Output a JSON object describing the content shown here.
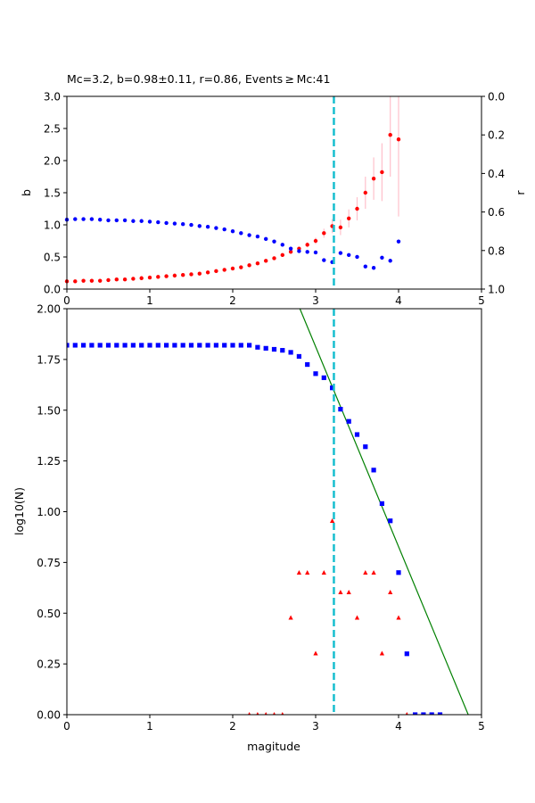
{
  "chart_data": [
    {
      "type": "scatter",
      "title": "Mc=3.2, b=0.98±0.11, r=0.86, Events ≥ Mc:41",
      "xlabel": "",
      "ylabel": "b",
      "y2label": "r",
      "xlim": [
        0,
        5
      ],
      "ylim": [
        0,
        3.0
      ],
      "y2lim": [
        1.0,
        0.0
      ],
      "xticks": [
        "0",
        "1",
        "2",
        "3",
        "4",
        "5"
      ],
      "yticks": [
        "0.0",
        "0.5",
        "1.0",
        "1.5",
        "2.0",
        "2.5",
        "3.0"
      ],
      "y2ticks": [
        "0.0",
        "0.2",
        "0.4",
        "0.6",
        "0.8",
        "1.0"
      ],
      "mc_line": 3.22,
      "colors": {
        "b": "#ff0000",
        "r": "#0000ff",
        "err": "#ffc0cb",
        "mc": "#17becf"
      },
      "series": [
        {
          "name": "b",
          "x": [
            0.0,
            0.1,
            0.2,
            0.3,
            0.4,
            0.5,
            0.6,
            0.7,
            0.8,
            0.9,
            1.0,
            1.1,
            1.2,
            1.3,
            1.4,
            1.5,
            1.6,
            1.7,
            1.8,
            1.9,
            2.0,
            2.1,
            2.2,
            2.3,
            2.4,
            2.5,
            2.6,
            2.7,
            2.8,
            2.9,
            3.0,
            3.1,
            3.2,
            3.3,
            3.4,
            3.5,
            3.6,
            3.7,
            3.8,
            3.9,
            4.0
          ],
          "y": [
            0.12,
            0.12,
            0.13,
            0.13,
            0.13,
            0.14,
            0.15,
            0.15,
            0.16,
            0.17,
            0.18,
            0.19,
            0.2,
            0.21,
            0.22,
            0.23,
            0.24,
            0.26,
            0.28,
            0.3,
            0.32,
            0.34,
            0.37,
            0.4,
            0.44,
            0.48,
            0.53,
            0.58,
            0.63,
            0.69,
            0.75,
            0.87,
            0.98,
            0.96,
            1.1,
            1.25,
            1.5,
            1.72,
            1.82,
            2.4,
            2.33
          ],
          "err": [
            0.01,
            0.01,
            0.01,
            0.01,
            0.01,
            0.01,
            0.01,
            0.01,
            0.01,
            0.01,
            0.01,
            0.01,
            0.01,
            0.01,
            0.01,
            0.01,
            0.01,
            0.01,
            0.01,
            0.01,
            0.01,
            0.01,
            0.01,
            0.01,
            0.02,
            0.02,
            0.02,
            0.03,
            0.03,
            0.04,
            0.05,
            0.07,
            0.11,
            0.12,
            0.14,
            0.18,
            0.25,
            0.33,
            0.45,
            0.65,
            1.2
          ]
        },
        {
          "name": "r",
          "x": [
            0.0,
            0.1,
            0.2,
            0.3,
            0.4,
            0.5,
            0.6,
            0.7,
            0.8,
            0.9,
            1.0,
            1.1,
            1.2,
            1.3,
            1.4,
            1.5,
            1.6,
            1.7,
            1.8,
            1.9,
            2.0,
            2.1,
            2.2,
            2.3,
            2.4,
            2.5,
            2.6,
            2.7,
            2.8,
            2.9,
            3.0,
            3.1,
            3.2,
            3.3,
            3.4,
            3.5,
            3.6,
            3.7,
            3.8,
            3.9,
            4.0
          ],
          "y": [
            0.64,
            0.637,
            0.637,
            0.637,
            0.64,
            0.643,
            0.643,
            0.643,
            0.647,
            0.647,
            0.65,
            0.653,
            0.657,
            0.66,
            0.663,
            0.667,
            0.673,
            0.677,
            0.683,
            0.69,
            0.7,
            0.71,
            0.72,
            0.727,
            0.74,
            0.753,
            0.77,
            0.79,
            0.803,
            0.807,
            0.81,
            0.85,
            0.86,
            0.813,
            0.823,
            0.833,
            0.883,
            0.89,
            0.837,
            0.853,
            0.753
          ]
        }
      ]
    },
    {
      "type": "scatter",
      "title": "",
      "xlabel": "magitude",
      "ylabel": "log10(N)",
      "xlim": [
        0,
        5
      ],
      "ylim": [
        0,
        2.0
      ],
      "xticks": [
        "0",
        "1",
        "2",
        "3",
        "4",
        "5"
      ],
      "yticks": [
        "0.00",
        "0.25",
        "0.50",
        "0.75",
        "1.00",
        "1.25",
        "1.50",
        "1.75",
        "2.00"
      ],
      "mc_line": 3.22,
      "colors": {
        "cumulative": "#0000ff",
        "noncumulative": "#ff0000",
        "fit": "#008000",
        "mc": "#17becf"
      },
      "series": [
        {
          "name": "cumulative",
          "x": [
            0.0,
            0.1,
            0.2,
            0.3,
            0.4,
            0.5,
            0.6,
            0.7,
            0.8,
            0.9,
            1.0,
            1.1,
            1.2,
            1.3,
            1.4,
            1.5,
            1.6,
            1.7,
            1.8,
            1.9,
            2.0,
            2.1,
            2.2,
            2.3,
            2.4,
            2.5,
            2.6,
            2.7,
            2.8,
            2.9,
            3.0,
            3.1,
            3.2,
            3.3,
            3.4,
            3.5,
            3.6,
            3.7,
            3.8,
            3.9,
            4.0,
            4.1,
            4.2,
            4.3,
            4.4,
            4.5
          ],
          "y": [
            1.82,
            1.82,
            1.82,
            1.82,
            1.82,
            1.82,
            1.82,
            1.82,
            1.82,
            1.82,
            1.82,
            1.82,
            1.82,
            1.82,
            1.82,
            1.82,
            1.82,
            1.82,
            1.82,
            1.82,
            1.82,
            1.82,
            1.82,
            1.81,
            1.805,
            1.8,
            1.795,
            1.785,
            1.765,
            1.725,
            1.68,
            1.66,
            1.61,
            1.505,
            1.445,
            1.38,
            1.32,
            1.205,
            1.04,
            0.955,
            0.7,
            0.3,
            0.0,
            0.0,
            0.0,
            0.0
          ]
        },
        {
          "name": "noncumulative",
          "x": [
            2.2,
            2.3,
            2.4,
            2.5,
            2.6,
            2.7,
            2.8,
            2.9,
            3.0,
            3.1,
            3.2,
            3.3,
            3.4,
            3.5,
            3.6,
            3.7,
            3.8,
            3.9,
            4.0,
            4.1
          ],
          "y": [
            0.0,
            0.0,
            0.0,
            0.0,
            0.0,
            0.477,
            0.699,
            0.699,
            0.301,
            0.699,
            0.954,
            0.602,
            0.602,
            0.477,
            0.699,
            0.699,
            0.301,
            0.602,
            0.477,
            0.0
          ]
        },
        {
          "name": "fit",
          "x": [
            2.81,
            4.84
          ],
          "y": [
            2.0,
            0.0
          ]
        }
      ]
    }
  ]
}
